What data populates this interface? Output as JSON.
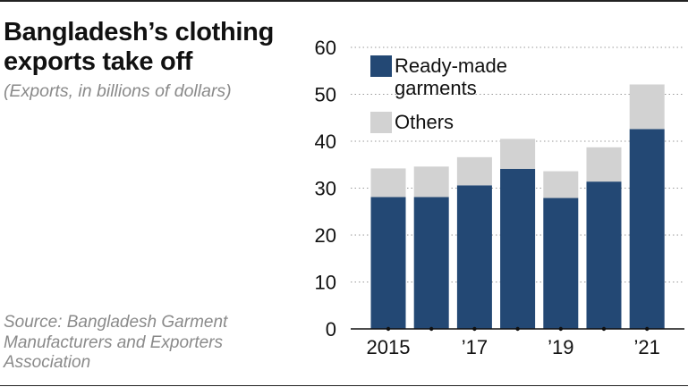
{
  "title": "Bangladesh’s clothing exports take off",
  "subtitle": "(Exports, in billions of dollars)",
  "source": "Source: Bangladesh Garment Manufacturers and Exporters Association",
  "colors": {
    "ready_made": "#234874",
    "others": "#d2d2d2"
  },
  "chart_data": {
    "type": "bar",
    "stacked": true,
    "categories": [
      "2015",
      "",
      "’17",
      "",
      "’19",
      "",
      "’21"
    ],
    "series": [
      {
        "name": "Ready-made garments",
        "values": [
          28.1,
          28.1,
          30.6,
          34.1,
          27.9,
          31.4,
          42.6
        ]
      },
      {
        "name": "Others",
        "values": [
          6.1,
          6.5,
          6.0,
          6.4,
          5.7,
          7.3,
          9.5
        ]
      }
    ],
    "ylim": [
      0,
      60
    ],
    "yticks": [
      "0",
      "10",
      "20",
      "30",
      "40",
      "50",
      "60"
    ],
    "legend": {
      "position": "top-left",
      "items": [
        {
          "lines": [
            "Ready-made",
            "garments"
          ],
          "color": "#234874"
        },
        {
          "lines": [
            "Others"
          ],
          "color": "#d2d2d2"
        }
      ]
    },
    "grid": true
  }
}
